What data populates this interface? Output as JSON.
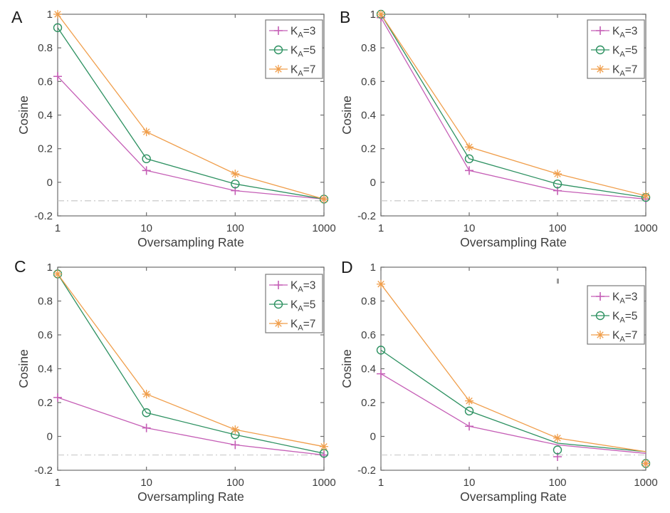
{
  "figure": {
    "background": "#ffffff",
    "axis_color": "#6e6e6e",
    "text_color": "#3d3d3d",
    "panel_letter_color": "#1c1c1c",
    "reference_line_color": "#c4c4c4",
    "legend_border_color": "#7a7a7a"
  },
  "chart_data": [
    {
      "type": "line",
      "panel_label": "A",
      "xlabel": "Oversampling Rate",
      "ylabel": "Cosine",
      "xscale": "log",
      "x": [
        1,
        10,
        100,
        1000
      ],
      "xtick_labels": [
        "1",
        "10",
        "100",
        "1000"
      ],
      "ylim": [
        -0.2,
        1
      ],
      "yticks": [
        -0.2,
        0,
        0.2,
        0.4,
        0.6,
        0.8,
        1
      ],
      "ytick_labels": [
        "-0.2",
        "0",
        "0.2",
        "0.4",
        "0.6",
        "0.8",
        "1"
      ],
      "grid": false,
      "legend_position": "top-right",
      "reference_line": {
        "y": -0.11,
        "style": "dash-dot"
      },
      "series": [
        {
          "name": "K_A=3",
          "label_parts": {
            "base": "K",
            "sub": "A",
            "rest": "=3"
          },
          "marker": "plus",
          "color": "#c55eb6",
          "values": [
            0.63,
            0.07,
            -0.05,
            -0.1
          ]
        },
        {
          "name": "K_A=5",
          "label_parts": {
            "base": "K",
            "sub": "A",
            "rest": "=5"
          },
          "marker": "circle",
          "color": "#2d9161",
          "values": [
            0.92,
            0.14,
            -0.01,
            -0.1
          ]
        },
        {
          "name": "K_A=7",
          "label_parts": {
            "base": "K",
            "sub": "A",
            "rest": "=7"
          },
          "marker": "asterisk",
          "color": "#f09e4b",
          "values": [
            1.0,
            0.3,
            0.05,
            -0.1
          ]
        }
      ]
    },
    {
      "type": "line",
      "panel_label": "B",
      "xlabel": "Oversampling Rate",
      "ylabel": "Cosine",
      "xscale": "log",
      "x": [
        1,
        10,
        100,
        1000
      ],
      "xtick_labels": [
        "1",
        "10",
        "100",
        "1000"
      ],
      "ylim": [
        -0.2,
        1
      ],
      "yticks": [
        -0.2,
        0,
        0.2,
        0.4,
        0.6,
        0.8,
        1
      ],
      "ytick_labels": [
        "-0.2",
        "0",
        "0.2",
        "0.4",
        "0.6",
        "0.8",
        "1"
      ],
      "grid": false,
      "legend_position": "top-right",
      "reference_line": {
        "y": -0.11,
        "style": "dash-dot"
      },
      "series": [
        {
          "name": "K_A=3",
          "label_parts": {
            "base": "K",
            "sub": "A",
            "rest": "=3"
          },
          "marker": "plus",
          "color": "#c55eb6",
          "values": [
            0.98,
            0.07,
            -0.05,
            -0.1
          ]
        },
        {
          "name": "K_A=5",
          "label_parts": {
            "base": "K",
            "sub": "A",
            "rest": "=5"
          },
          "marker": "circle",
          "color": "#2d9161",
          "values": [
            1.0,
            0.14,
            -0.01,
            -0.09
          ]
        },
        {
          "name": "K_A=7",
          "label_parts": {
            "base": "K",
            "sub": "A",
            "rest": "=7"
          },
          "marker": "asterisk",
          "color": "#f09e4b",
          "values": [
            1.0,
            0.21,
            0.05,
            -0.08
          ]
        }
      ]
    },
    {
      "type": "line",
      "panel_label": "C",
      "xlabel": "Oversampling Rate",
      "ylabel": "Cosine",
      "xscale": "log",
      "x": [
        1,
        10,
        100,
        1000
      ],
      "xtick_labels": [
        "1",
        "10",
        "100",
        "1000"
      ],
      "ylim": [
        -0.2,
        1
      ],
      "yticks": [
        -0.2,
        0,
        0.2,
        0.4,
        0.6,
        0.8,
        1
      ],
      "ytick_labels": [
        "-0.2",
        "0",
        "0.2",
        "0.4",
        "0.6",
        "0.8",
        "1"
      ],
      "grid": false,
      "legend_position": "top-right",
      "reference_line": {
        "y": -0.11,
        "style": "dash-dot"
      },
      "series": [
        {
          "name": "K_A=3",
          "label_parts": {
            "base": "K",
            "sub": "A",
            "rest": "=3"
          },
          "marker": "plus",
          "color": "#c55eb6",
          "values": [
            0.23,
            0.05,
            -0.05,
            -0.11
          ]
        },
        {
          "name": "K_A=5",
          "label_parts": {
            "base": "K",
            "sub": "A",
            "rest": "=5"
          },
          "marker": "circle",
          "color": "#2d9161",
          "values": [
            0.96,
            0.14,
            0.01,
            -0.1
          ]
        },
        {
          "name": "K_A=7",
          "label_parts": {
            "base": "K",
            "sub": "A",
            "rest": "=7"
          },
          "marker": "asterisk",
          "color": "#f09e4b",
          "values": [
            0.96,
            0.25,
            0.04,
            -0.06
          ]
        }
      ]
    },
    {
      "type": "line",
      "panel_label": "D",
      "xlabel": "Oversampling Rate",
      "ylabel": "Cosine",
      "xscale": "log",
      "x": [
        1,
        10,
        100,
        1000
      ],
      "xtick_labels": [
        "1",
        "10",
        "100",
        "1000"
      ],
      "ylim": [
        -0.2,
        1
      ],
      "yticks": [
        -0.2,
        0,
        0.2,
        0.4,
        0.6,
        0.8,
        1
      ],
      "ytick_labels": [
        "-0.2",
        "0",
        "0.2",
        "0.4",
        "0.6",
        "0.8",
        "1"
      ],
      "grid": false,
      "legend_position": "top-right",
      "reference_line": {
        "y": -0.11,
        "style": "dash-dot"
      },
      "series": [
        {
          "name": "K_A=3",
          "label_parts": {
            "base": "K",
            "sub": "A",
            "rest": "=3"
          },
          "marker": "plus",
          "color": "#c55eb6",
          "values": [
            0.37,
            0.06,
            -0.05,
            -0.1
          ],
          "marker_values": [
            0.37,
            0.06,
            -0.12,
            -0.16
          ]
        },
        {
          "name": "K_A=5",
          "label_parts": {
            "base": "K",
            "sub": "A",
            "rest": "=5"
          },
          "marker": "circle",
          "color": "#2d9161",
          "values": [
            0.51,
            0.15,
            -0.04,
            -0.09
          ],
          "marker_values": [
            0.51,
            0.15,
            -0.08,
            -0.16
          ]
        },
        {
          "name": "K_A=7",
          "label_parts": {
            "base": "K",
            "sub": "A",
            "rest": "=7"
          },
          "marker": "asterisk",
          "color": "#f09e4b",
          "values": [
            0.9,
            0.21,
            -0.01,
            -0.09
          ],
          "marker_values": [
            0.9,
            0.21,
            -0.01,
            -0.16
          ]
        }
      ]
    }
  ]
}
